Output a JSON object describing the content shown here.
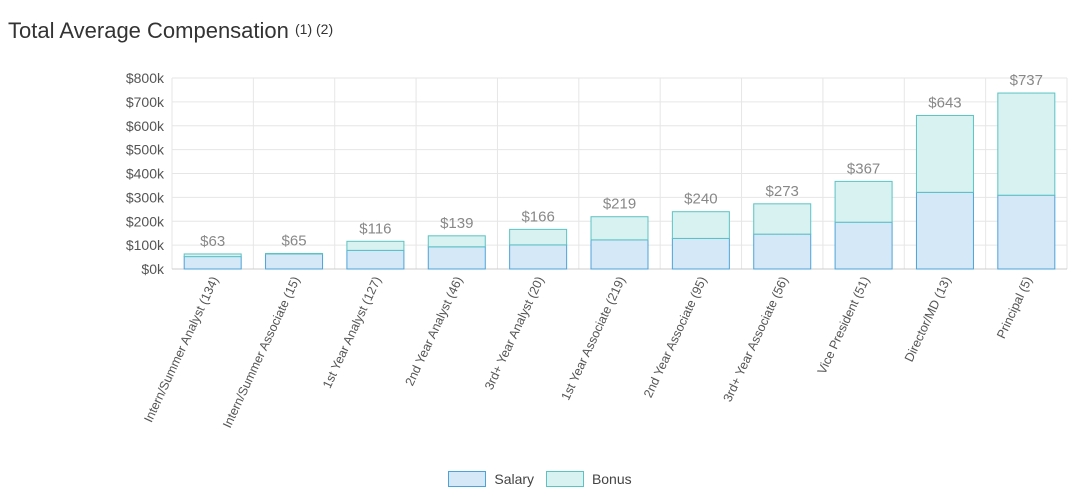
{
  "title": "Total Average Compensation",
  "title_notes": "(1) (2)",
  "chart_data": {
    "type": "bar",
    "stacked": true,
    "categories": [
      "Intern/Summer Analyst (134)",
      "Intern/Summer Associate (15)",
      "1st Year Analyst (127)",
      "2nd Year Analyst (46)",
      "3rd+ Year Analyst (20)",
      "1st Year Associate (219)",
      "2nd Year Associate (95)",
      "3rd+ Year Associate (56)",
      "Vice President (51)",
      "Director/MD (13)",
      "Principal (5)"
    ],
    "series": [
      {
        "name": "Salary",
        "values": [
          52,
          63,
          78,
          93,
          101,
          122,
          128,
          146,
          196,
          321,
          309
        ],
        "color": "#d5e8f8",
        "stroke": "#4da3d8"
      },
      {
        "name": "Bonus",
        "values": [
          11,
          2,
          38,
          46,
          65,
          97,
          112,
          127,
          171,
          322,
          428
        ],
        "color": "#d8f1f1",
        "stroke": "#5cc3c3"
      }
    ],
    "totals": [
      63,
      65,
      116,
      139,
      166,
      219,
      240,
      273,
      367,
      643,
      737
    ],
    "total_labels": [
      "$63",
      "$65",
      "$116",
      "$139",
      "$166",
      "$219",
      "$240",
      "$273",
      "$367",
      "$643",
      "$737"
    ],
    "ylim": [
      0,
      800
    ],
    "yticks": [
      0,
      100,
      200,
      300,
      400,
      500,
      600,
      700,
      800
    ],
    "ytick_labels": [
      "$0k",
      "$100k",
      "$200k",
      "$300k",
      "$400k",
      "$500k",
      "$600k",
      "$700k",
      "$800k"
    ],
    "grid": true,
    "legend_position": "bottom"
  },
  "colors": {
    "grid": "#e6e6e6",
    "axis": "#cccccc",
    "label": "#888888",
    "tick": "#555555"
  }
}
